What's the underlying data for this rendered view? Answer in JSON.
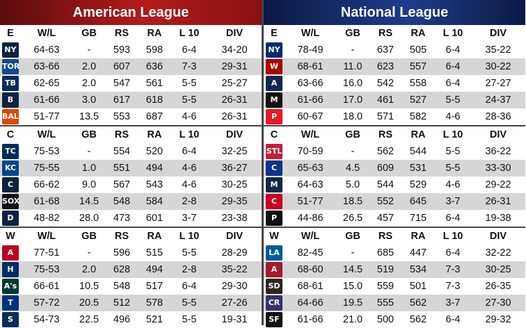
{
  "leagues": [
    {
      "name": "American League",
      "divisions": [
        {
          "code": "E",
          "teams": [
            {
              "abbr": "NY",
              "icon": "yankees-logo-icon",
              "color": "#0c2340",
              "wl": "64-63",
              "gb": "-",
              "rs": "593",
              "ra": "598",
              "l10": "6-4",
              "div": "34-20"
            },
            {
              "abbr": "TOR",
              "icon": "bluejays-logo-icon",
              "color": "#134a8e",
              "wl": "63-66",
              "gb": "2.0",
              "rs": "607",
              "ra": "636",
              "l10": "7-3",
              "div": "29-31"
            },
            {
              "abbr": "TB",
              "icon": "rays-logo-icon",
              "color": "#092c5c",
              "wl": "62-65",
              "gb": "2.0",
              "rs": "547",
              "ra": "561",
              "l10": "5-5",
              "div": "25-27"
            },
            {
              "abbr": "B",
              "icon": "redsox-logo-icon",
              "color": "#0c2340",
              "wl": "61-66",
              "gb": "3.0",
              "rs": "617",
              "ra": "618",
              "l10": "5-5",
              "div": "26-31"
            },
            {
              "abbr": "BAL",
              "icon": "orioles-logo-icon",
              "color": "#df4601",
              "wl": "51-77",
              "gb": "13.5",
              "rs": "553",
              "ra": "687",
              "l10": "4-6",
              "div": "26-31"
            }
          ]
        },
        {
          "code": "C",
          "teams": [
            {
              "abbr": "TC",
              "icon": "twins-logo-icon",
              "color": "#002b5c",
              "wl": "75-53",
              "gb": "-",
              "rs": "554",
              "ra": "520",
              "l10": "6-4",
              "div": "32-25"
            },
            {
              "abbr": "KC",
              "icon": "royals-logo-icon",
              "color": "#004687",
              "wl": "75-55",
              "gb": "1.0",
              "rs": "551",
              "ra": "494",
              "l10": "4-6",
              "div": "36-27"
            },
            {
              "abbr": "C",
              "icon": "indians-logo-icon",
              "color": "#0c2340",
              "wl": "66-62",
              "gb": "9.0",
              "rs": "567",
              "ra": "543",
              "l10": "4-6",
              "div": "30-25"
            },
            {
              "abbr": "SOX",
              "icon": "whitesox-logo-icon",
              "color": "#111111",
              "wl": "61-68",
              "gb": "14.5",
              "rs": "548",
              "ra": "584",
              "l10": "2-8",
              "div": "29-35"
            },
            {
              "abbr": "D",
              "icon": "tigers-logo-icon",
              "color": "#0c2340",
              "wl": "48-82",
              "gb": "28.0",
              "rs": "473",
              "ra": "601",
              "l10": "3-7",
              "div": "23-38"
            }
          ]
        },
        {
          "code": "W",
          "teams": [
            {
              "abbr": "A",
              "icon": "angels-logo-icon",
              "color": "#ba0021",
              "wl": "77-51",
              "gb": "-",
              "rs": "596",
              "ra": "515",
              "l10": "5-5",
              "div": "28-29"
            },
            {
              "abbr": "H",
              "icon": "astros-logo-icon",
              "color": "#002d62",
              "wl": "75-53",
              "gb": "2.0",
              "rs": "628",
              "ra": "494",
              "l10": "2-8",
              "div": "35-22"
            },
            {
              "abbr": "A's",
              "icon": "athletics-logo-icon",
              "color": "#003831",
              "wl": "66-61",
              "gb": "10.5",
              "rs": "548",
              "ra": "517",
              "l10": "6-4",
              "div": "29-30"
            },
            {
              "abbr": "T",
              "icon": "rangers-logo-icon",
              "color": "#003278",
              "wl": "57-72",
              "gb": "20.5",
              "rs": "512",
              "ra": "578",
              "l10": "5-5",
              "div": "27-26"
            },
            {
              "abbr": "S",
              "icon": "mariners-logo-icon",
              "color": "#0c2c56",
              "wl": "54-73",
              "gb": "22.5",
              "rs": "496",
              "ra": "521",
              "l10": "5-5",
              "div": "19-31"
            }
          ]
        }
      ]
    },
    {
      "name": "National League",
      "divisions": [
        {
          "code": "E",
          "teams": [
            {
              "abbr": "NY",
              "icon": "mets-logo-icon",
              "color": "#002d72",
              "wl": "78-49",
              "gb": "-",
              "rs": "637",
              "ra": "505",
              "l10": "6-4",
              "div": "35-22"
            },
            {
              "abbr": "W",
              "icon": "nationals-logo-icon",
              "color": "#ab0003",
              "wl": "68-61",
              "gb": "11.0",
              "rs": "623",
              "ra": "557",
              "l10": "6-4",
              "div": "30-22"
            },
            {
              "abbr": "A",
              "icon": "braves-logo-icon",
              "color": "#13274f",
              "wl": "63-66",
              "gb": "16.0",
              "rs": "542",
              "ra": "558",
              "l10": "6-4",
              "div": "27-27"
            },
            {
              "abbr": "M",
              "icon": "marlins-logo-icon",
              "color": "#111111",
              "wl": "61-66",
              "gb": "17.0",
              "rs": "461",
              "ra": "527",
              "l10": "5-5",
              "div": "24-37"
            },
            {
              "abbr": "P",
              "icon": "phillies-logo-icon",
              "color": "#e81828",
              "wl": "60-67",
              "gb": "18.0",
              "rs": "571",
              "ra": "582",
              "l10": "4-6",
              "div": "28-36"
            }
          ]
        },
        {
          "code": "C",
          "teams": [
            {
              "abbr": "STL",
              "icon": "cardinals-logo-icon",
              "color": "#c41e3a",
              "wl": "70-59",
              "gb": "-",
              "rs": "562",
              "ra": "544",
              "l10": "5-5",
              "div": "36-22"
            },
            {
              "abbr": "C",
              "icon": "cubs-logo-icon",
              "color": "#0e3386",
              "wl": "65-63",
              "gb": "4.5",
              "rs": "609",
              "ra": "531",
              "l10": "5-5",
              "div": "33-30"
            },
            {
              "abbr": "M",
              "icon": "brewers-logo-icon",
              "color": "#12284b",
              "wl": "64-63",
              "gb": "5.0",
              "rs": "544",
              "ra": "529",
              "l10": "4-6",
              "div": "29-22"
            },
            {
              "abbr": "C",
              "icon": "reds-logo-icon",
              "color": "#c6011f",
              "wl": "51-77",
              "gb": "18.5",
              "rs": "552",
              "ra": "645",
              "l10": "3-7",
              "div": "26-31"
            },
            {
              "abbr": "P",
              "icon": "pirates-logo-icon",
              "color": "#111111",
              "wl": "44-86",
              "gb": "26.5",
              "rs": "457",
              "ra": "715",
              "l10": "6-4",
              "div": "19-38"
            }
          ]
        },
        {
          "code": "W",
          "teams": [
            {
              "abbr": "LA",
              "icon": "dodgers-logo-icon",
              "color": "#005a9c",
              "wl": "82-45",
              "gb": "-",
              "rs": "685",
              "ra": "447",
              "l10": "6-4",
              "div": "32-22"
            },
            {
              "abbr": "A",
              "icon": "diamondbacks-logo-icon",
              "color": "#a71930",
              "wl": "68-60",
              "gb": "14.5",
              "rs": "519",
              "ra": "534",
              "l10": "7-3",
              "div": "30-25"
            },
            {
              "abbr": "SD",
              "icon": "padres-logo-icon",
              "color": "#2f241d",
              "wl": "68-61",
              "gb": "15.0",
              "rs": "559",
              "ra": "501",
              "l10": "7-3",
              "div": "26-35"
            },
            {
              "abbr": "CR",
              "icon": "rockies-logo-icon",
              "color": "#333366",
              "wl": "64-66",
              "gb": "19.5",
              "rs": "555",
              "ra": "562",
              "l10": "3-7",
              "div": "27-30"
            },
            {
              "abbr": "SF",
              "icon": "giants-logo-icon",
              "color": "#111111",
              "wl": "61-66",
              "gb": "21.0",
              "rs": "500",
              "ra": "562",
              "l10": "6-4",
              "div": "29-32"
            }
          ]
        }
      ]
    }
  ],
  "columns": [
    "W/L",
    "GB",
    "RS",
    "RA",
    "L 10",
    "DIV"
  ]
}
